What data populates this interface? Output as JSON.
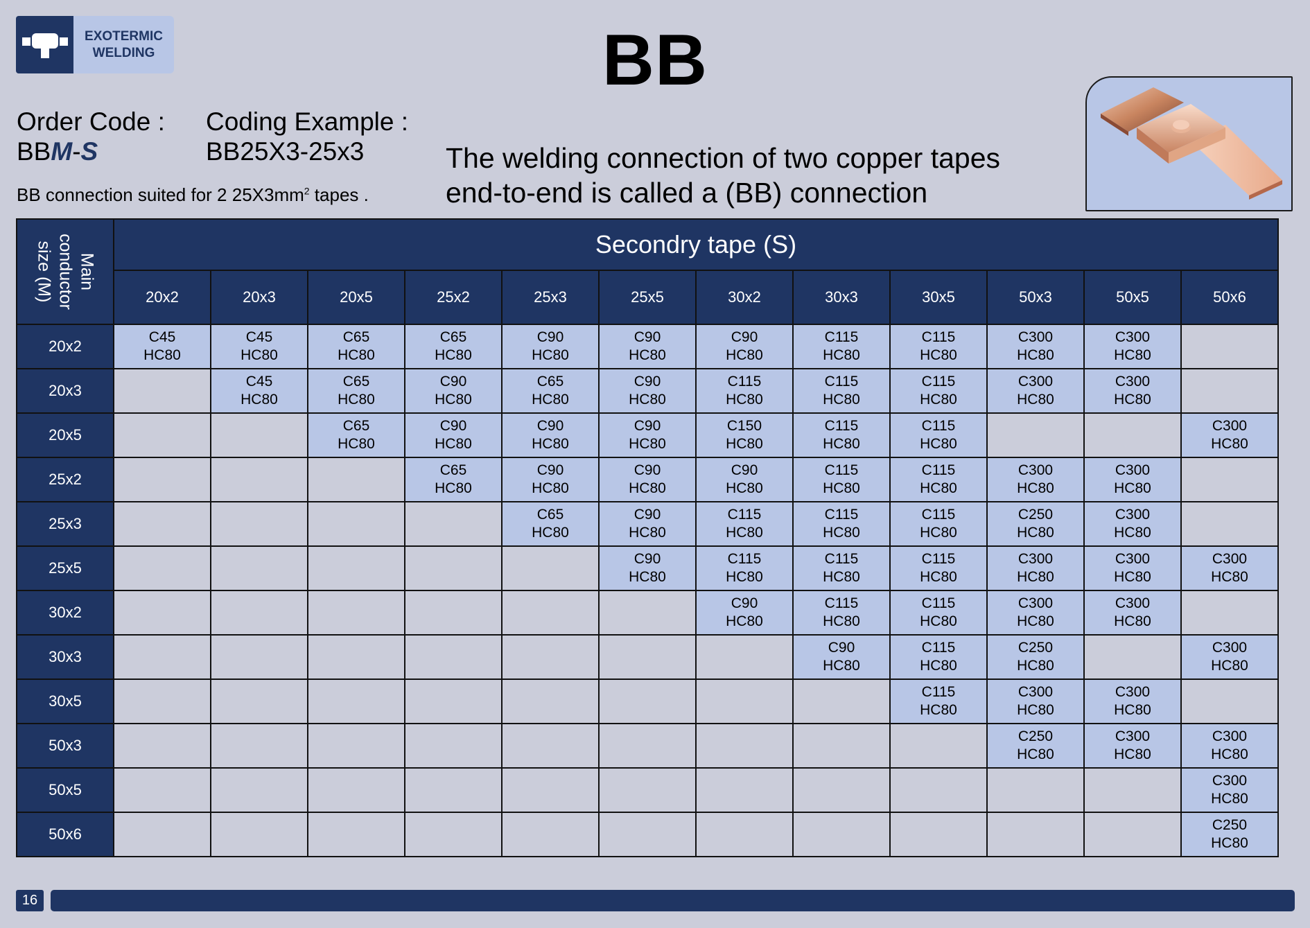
{
  "logo": {
    "line1": "EXOTERMIC",
    "line2": "WELDING"
  },
  "title": "BB",
  "order": {
    "label": "Order Code :",
    "prefix": "BB",
    "m": "M",
    "dash": "-",
    "s": "S"
  },
  "coding": {
    "label": "Coding Example :",
    "value": "BB25X3-25x3"
  },
  "suited": {
    "text": "BB connection suited for 2 25X3mm",
    "sup": "2",
    "tail": " tapes ."
  },
  "description": {
    "line1": "The welding connection of two copper tapes",
    "line2": "end-to-end is called a (BB) connection"
  },
  "table": {
    "corner": {
      "line1": "Main",
      "line2": "conductor",
      "line3": "size (M)"
    },
    "secondary_header": "Secondry tape (S)",
    "columns": [
      "20x2",
      "20x3",
      "20x5",
      "25x2",
      "25x3",
      "25x5",
      "30x2",
      "30x3",
      "30x5",
      "50x3",
      "50x5",
      "50x6"
    ],
    "rows": [
      {
        "label": "20x2",
        "cells": [
          "C45 HC80",
          "C45 HC80",
          "C65 HC80",
          "C65 HC80",
          "C90 HC80",
          "C90 HC80",
          "C90 HC80",
          "C115 HC80",
          "C115 HC80",
          "C300 HC80",
          "C300 HC80",
          ""
        ]
      },
      {
        "label": "20x3",
        "cells": [
          "",
          "C45 HC80",
          "C65 HC80",
          "C90 HC80",
          "C65 HC80",
          "C90 HC80",
          "C115 HC80",
          "C115 HC80",
          "C115 HC80",
          "C300 HC80",
          "C300 HC80",
          ""
        ]
      },
      {
        "label": "20x5",
        "cells": [
          "",
          "",
          "C65 HC80",
          "C90 HC80",
          "C90 HC80",
          "C90 HC80",
          "C150 HC80",
          "C115 HC80",
          "C115 HC80",
          "",
          "",
          "C300 HC80"
        ]
      },
      {
        "label": "25x2",
        "cells": [
          "",
          "",
          "",
          "C65 HC80",
          "C90 HC80",
          "C90 HC80",
          "C90 HC80",
          "C115 HC80",
          "C115 HC80",
          "C300 HC80",
          "C300 HC80",
          ""
        ]
      },
      {
        "label": "25x3",
        "cells": [
          "",
          "",
          "",
          "",
          "C65 HC80",
          "C90 HC80",
          "C115 HC80",
          "C115 HC80",
          "C115 HC80",
          "C250 HC80",
          "C300 HC80",
          ""
        ]
      },
      {
        "label": "25x5",
        "cells": [
          "",
          "",
          "",
          "",
          "",
          "C90 HC80",
          "C115 HC80",
          "C115 HC80",
          "C115 HC80",
          "C300 HC80",
          "C300 HC80",
          "C300 HC80"
        ]
      },
      {
        "label": "30x2",
        "cells": [
          "",
          "",
          "",
          "",
          "",
          "",
          "C90 HC80",
          "C115 HC80",
          "C115 HC80",
          "C300 HC80",
          "C300 HC80",
          ""
        ]
      },
      {
        "label": "30x3",
        "cells": [
          "",
          "",
          "",
          "",
          "",
          "",
          "",
          "C90 HC80",
          "C115 HC80",
          "C250 HC80",
          "",
          "C300 HC80"
        ]
      },
      {
        "label": "30x5",
        "cells": [
          "",
          "",
          "",
          "",
          "",
          "",
          "",
          "",
          "C115 HC80",
          "C300 HC80",
          "C300 HC80",
          ""
        ]
      },
      {
        "label": "50x3",
        "cells": [
          "",
          "",
          "",
          "",
          "",
          "",
          "",
          "",
          "",
          "C250 HC80",
          "C300 HC80",
          "C300 HC80"
        ]
      },
      {
        "label": "50x5",
        "cells": [
          "",
          "",
          "",
          "",
          "",
          "",
          "",
          "",
          "",
          "",
          "",
          "C300 HC80"
        ]
      },
      {
        "label": "50x6",
        "cells": [
          "",
          "",
          "",
          "",
          "",
          "",
          "",
          "",
          "",
          "",
          "",
          "C250 HC80"
        ]
      }
    ]
  },
  "footer": {
    "page_number": "16"
  },
  "colors": {
    "navy": "#1f3563",
    "cell_fill": "#b8c6e6",
    "background": "#cbcdda"
  }
}
